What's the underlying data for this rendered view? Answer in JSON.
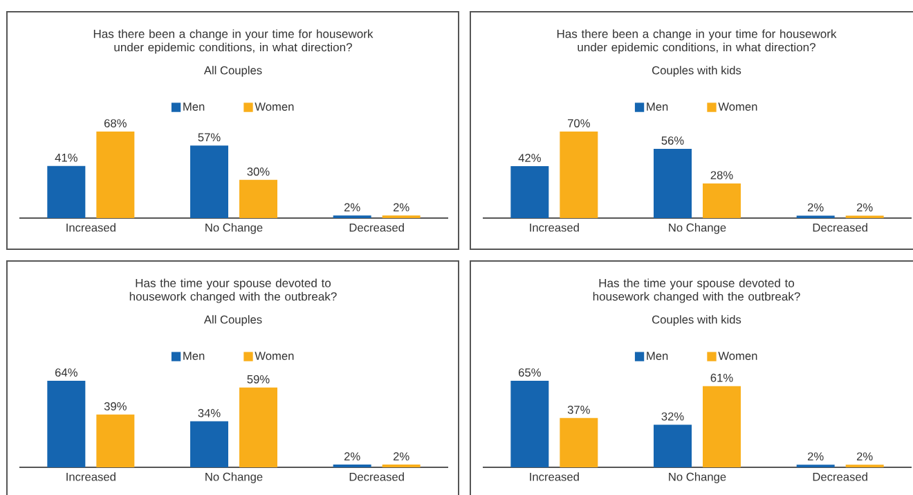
{
  "chart_data": [
    {
      "type": "bar",
      "title": "Has there been a change in your time for housework under epidemic conditions, in what direction?",
      "subtitle": "All Couples",
      "categories": [
        "Increased",
        "No Change",
        "Decreased"
      ],
      "legend": "top",
      "series": [
        {
          "name": "Men",
          "color": "#1565b0",
          "values": [
            41,
            57,
            2
          ],
          "value_labels": [
            "41%",
            "57%",
            "2%"
          ]
        },
        {
          "name": "Women",
          "color": "#f9ae1a",
          "values": [
            68,
            30,
            2
          ],
          "value_labels": [
            "68%",
            "30%",
            "2%"
          ]
        }
      ]
    },
    {
      "type": "bar",
      "title": "Has there been a change in your time for housework under epidemic conditions, in what direction?",
      "subtitle": "Couples with kids",
      "categories": [
        "Increased",
        "No Change",
        "Decreased"
      ],
      "legend": "top",
      "series": [
        {
          "name": "Men",
          "color": "#1565b0",
          "values": [
            42,
            56,
            2
          ],
          "value_labels": [
            "42%",
            "56%",
            "2%"
          ]
        },
        {
          "name": "Women",
          "color": "#f9ae1a",
          "values": [
            70,
            28,
            2
          ],
          "value_labels": [
            "70%",
            "28%",
            "2%"
          ]
        }
      ]
    },
    {
      "type": "bar",
      "title": "Has the time your spouse devoted to housework changed with the outbreak?",
      "subtitle": "All Couples",
      "categories": [
        "Increased",
        "No Change",
        "Decreased"
      ],
      "legend": "top",
      "series": [
        {
          "name": "Men",
          "color": "#1565b0",
          "values": [
            64,
            34,
            2
          ],
          "value_labels": [
            "64%",
            "34%",
            "2%"
          ]
        },
        {
          "name": "Women",
          "color": "#f9ae1a",
          "values": [
            39,
            59,
            2
          ],
          "value_labels": [
            "39%",
            "59%",
            "2%"
          ]
        }
      ]
    },
    {
      "type": "bar",
      "title": "Has the time your spouse devoted to housework changed with the outbreak?",
      "subtitle": "Couples with kids",
      "categories": [
        "Increased",
        "No Change",
        "Decreased"
      ],
      "legend": "top",
      "series": [
        {
          "name": "Men",
          "color": "#1565b0",
          "values": [
            65,
            32,
            2
          ],
          "value_labels": [
            "65%",
            "32%",
            "2%"
          ]
        },
        {
          "name": "Women",
          "color": "#f9ae1a",
          "values": [
            37,
            61,
            2
          ],
          "value_labels": [
            "37%",
            "61%",
            "2%"
          ]
        }
      ]
    }
  ]
}
